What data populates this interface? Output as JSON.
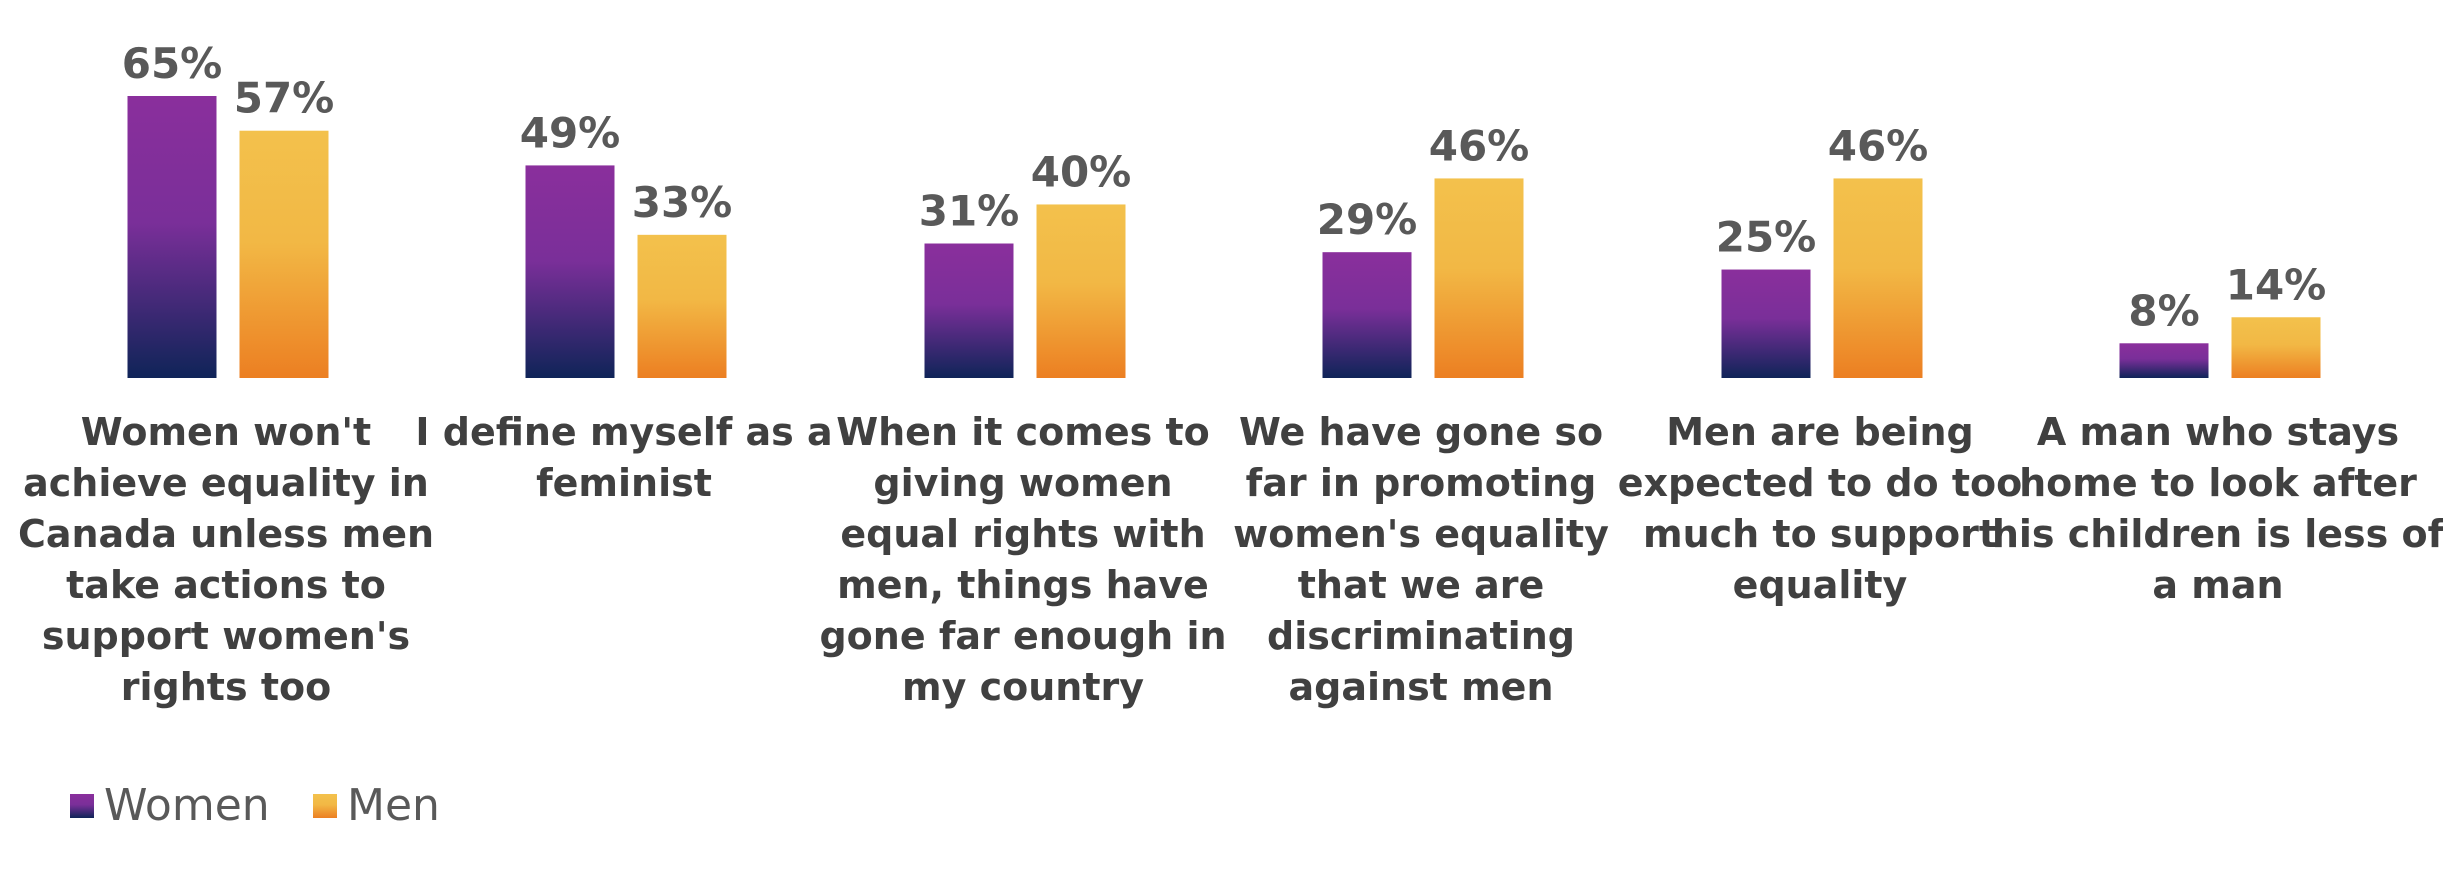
{
  "chart_data": {
    "type": "bar",
    "categories": [
      [
        "Women won't",
        "achieve equality in",
        "Canada unless men",
        "take actions to",
        "support women's",
        "rights too"
      ],
      [
        "I define myself as a",
        "feminist"
      ],
      [
        "When it comes to",
        "giving women",
        "equal rights with",
        "men, things have",
        "gone far enough in",
        "my country"
      ],
      [
        "We have gone so",
        "far in promoting",
        "women's equality",
        "that we are",
        "discriminating",
        "against men"
      ],
      [
        "Men are being",
        "expected to do too",
        "much to support",
        "equality"
      ],
      [
        "A man who stays",
        "home to look after",
        "his children is less of",
        "a man"
      ]
    ],
    "series": [
      {
        "name": "Women",
        "values": [
          65,
          49,
          31,
          29,
          25,
          8
        ],
        "labels": [
          "65%",
          "49%",
          "31%",
          "29%",
          "25%",
          "8%"
        ]
      },
      {
        "name": "Men",
        "values": [
          57,
          33,
          40,
          46,
          46,
          14
        ],
        "labels": [
          "57%",
          "33%",
          "40%",
          "46%",
          "46%",
          "14%"
        ]
      }
    ],
    "ylim": [
      0,
      65
    ],
    "legend_position": "bottom-left",
    "colors": {
      "women_top": "#8a2f9c",
      "women_bottom": "#0f2458",
      "men_top": "#f3c14c",
      "men_bottom": "#ec7f22"
    }
  }
}
